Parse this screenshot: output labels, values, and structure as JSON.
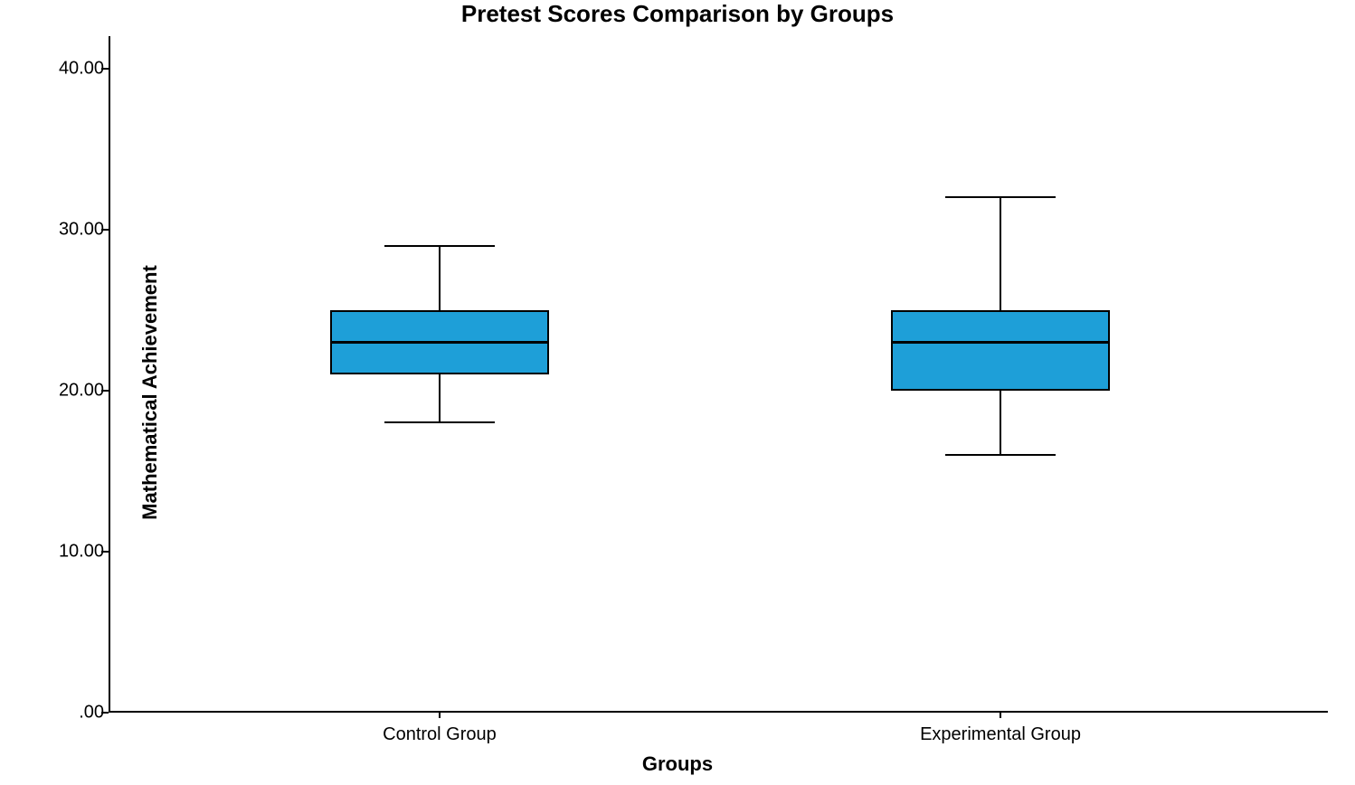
{
  "chart": {
    "type": "boxplot",
    "title": "Pretest Scores Comparison by Groups",
    "title_fontsize": 26,
    "title_fontweight": "bold",
    "x_axis_label": "Groups",
    "y_axis_label": "Mathematical Achievement",
    "axis_label_fontsize": 22,
    "axis_label_fontweight": "bold",
    "tick_fontsize": 20,
    "background_color": "#ffffff",
    "axis_color": "#000000",
    "y_axis": {
      "min": 0,
      "max": 42,
      "ticks": [
        {
          "value": 0,
          "label": ".00"
        },
        {
          "value": 10,
          "label": "10.00"
        },
        {
          "value": 20,
          "label": "20.00"
        },
        {
          "value": 30,
          "label": "30.00"
        },
        {
          "value": 40,
          "label": "40.00"
        }
      ]
    },
    "x_axis": {
      "categories": [
        "Control Group",
        "Experimental Group"
      ]
    },
    "boxes": [
      {
        "label": "Control Group",
        "x_position_pct": 27,
        "min": 18,
        "q1": 21,
        "median": 23,
        "q3": 25,
        "max": 29,
        "box_width_pct": 18,
        "whisker_cap_width_pct": 9,
        "fill_color": "#1e9fd8",
        "border_color": "#000000",
        "median_color": "#000000"
      },
      {
        "label": "Experimental Group",
        "x_position_pct": 73,
        "min": 16,
        "q1": 20,
        "median": 23,
        "q3": 25,
        "max": 32,
        "box_width_pct": 18,
        "whisker_cap_width_pct": 9,
        "fill_color": "#1e9fd8",
        "border_color": "#000000",
        "median_color": "#000000"
      }
    ]
  }
}
